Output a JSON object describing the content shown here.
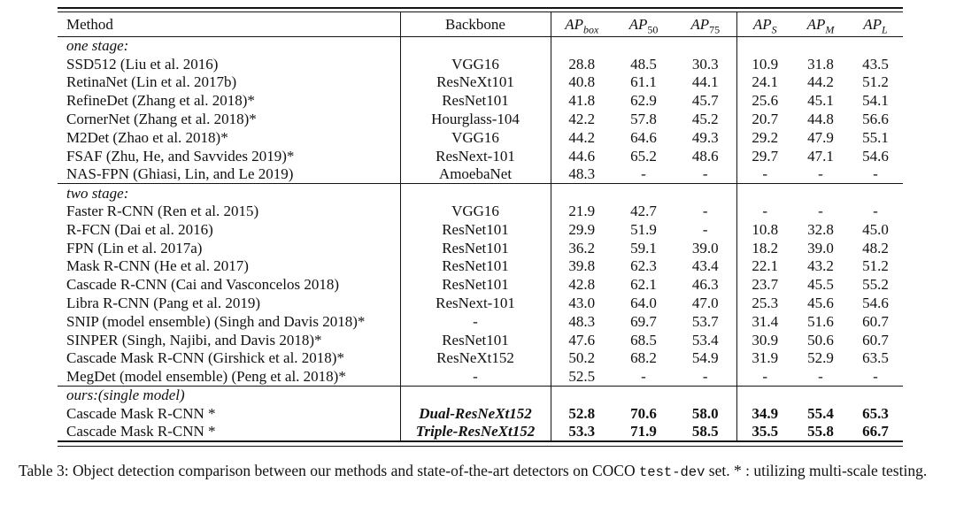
{
  "table": {
    "headers": [
      {
        "label": "Method"
      },
      {
        "label": "Backbone"
      },
      {
        "base": "AP",
        "sub": "box"
      },
      {
        "base": "AP",
        "sub": "50"
      },
      {
        "base": "AP",
        "sub": "75"
      },
      {
        "base": "AP",
        "sub": "S"
      },
      {
        "base": "AP",
        "sub": "M"
      },
      {
        "base": "AP",
        "sub": "L"
      }
    ],
    "sections": [
      {
        "label": "one stage:",
        "rows": [
          {
            "method": "SSD512 (Liu et al. 2016)",
            "backbone": "VGG16",
            "values": [
              "28.8",
              "48.5",
              "30.3",
              "10.9",
              "31.8",
              "43.5"
            ]
          },
          {
            "method": "RetinaNet (Lin et al. 2017b)",
            "backbone": "ResNeXt101",
            "values": [
              "40.8",
              "61.1",
              "44.1",
              "24.1",
              "44.2",
              "51.2"
            ]
          },
          {
            "method": "RefineDet (Zhang et al. 2018)*",
            "backbone": "ResNet101",
            "values": [
              "41.8",
              "62.9",
              "45.7",
              "25.6",
              "45.1",
              "54.1"
            ]
          },
          {
            "method": "CornerNet (Zhang et al. 2018)*",
            "backbone": "Hourglass-104",
            "values": [
              "42.2",
              "57.8",
              "45.2",
              "20.7",
              "44.8",
              "56.6"
            ]
          },
          {
            "method": "M2Det (Zhao et al. 2018)*",
            "backbone": "VGG16",
            "values": [
              "44.2",
              "64.6",
              "49.3",
              "29.2",
              "47.9",
              "55.1"
            ]
          },
          {
            "method": "FSAF (Zhu, He, and Savvides 2019)*",
            "backbone": "ResNext-101",
            "values": [
              "44.6",
              "65.2",
              "48.6",
              "29.7",
              "47.1",
              "54.6"
            ]
          },
          {
            "method": "NAS-FPN (Ghiasi, Lin, and Le 2019)",
            "backbone": "AmoebaNet",
            "values": [
              "48.3",
              "-",
              "-",
              "-",
              "-",
              "-"
            ]
          }
        ]
      },
      {
        "label": "two stage:",
        "rows": [
          {
            "method": "Faster R-CNN (Ren et al. 2015)",
            "backbone": "VGG16",
            "values": [
              "21.9",
              "42.7",
              "-",
              "-",
              "-",
              "-"
            ]
          },
          {
            "method": "R-FCN (Dai et al. 2016)",
            "backbone": "ResNet101",
            "values": [
              "29.9",
              "51.9",
              "-",
              "10.8",
              "32.8",
              "45.0"
            ]
          },
          {
            "method": "FPN (Lin et al. 2017a)",
            "backbone": "ResNet101",
            "values": [
              "36.2",
              "59.1",
              "39.0",
              "18.2",
              "39.0",
              "48.2"
            ]
          },
          {
            "method": "Mask R-CNN (He et al. 2017)",
            "backbone": "ResNet101",
            "values": [
              "39.8",
              "62.3",
              "43.4",
              "22.1",
              "43.2",
              "51.2"
            ]
          },
          {
            "method": "Cascade R-CNN (Cai and Vasconcelos 2018)",
            "backbone": "ResNet101",
            "values": [
              "42.8",
              "62.1",
              "46.3",
              "23.7",
              "45.5",
              "55.2"
            ]
          },
          {
            "method": "Libra R-CNN (Pang et al. 2019)",
            "backbone": "ResNext-101",
            "values": [
              "43.0",
              "64.0",
              "47.0",
              "25.3",
              "45.6",
              "54.6"
            ]
          },
          {
            "method": "SNIP (model ensemble) (Singh and Davis 2018)*",
            "backbone": "-",
            "values": [
              "48.3",
              "69.7",
              "53.7",
              "31.4",
              "51.6",
              "60.7"
            ]
          },
          {
            "method": "SINPER (Singh, Najibi, and Davis 2018)*",
            "backbone": "ResNet101",
            "values": [
              "47.6",
              "68.5",
              "53.4",
              "30.9",
              "50.6",
              "60.7"
            ]
          },
          {
            "method": "Cascade Mask R-CNN (Girshick et al. 2018)*",
            "backbone": "ResNeXt152",
            "values": [
              "50.2",
              "68.2",
              "54.9",
              "31.9",
              "52.9",
              "63.5"
            ]
          },
          {
            "method": "MegDet (model ensemble) (Peng et al. 2018)*",
            "backbone": "-",
            "values": [
              "52.5",
              "-",
              "-",
              "-",
              "-",
              "-"
            ]
          }
        ]
      },
      {
        "label": "ours:(single model)",
        "rows": [
          {
            "method": "Cascade Mask R-CNN *",
            "backbone": "Dual-ResNeXt152",
            "values": [
              "52.8",
              "70.6",
              "58.0",
              "34.9",
              "55.4",
              "65.3"
            ],
            "emphasis": true
          },
          {
            "method": "Cascade Mask R-CNN *",
            "backbone": "Triple-ResNeXt152",
            "values": [
              "53.3",
              "71.9",
              "58.5",
              "35.5",
              "55.8",
              "66.7"
            ],
            "emphasis": true
          }
        ]
      }
    ]
  },
  "caption": {
    "before_code": "Table 3: Object detection comparison between our methods and state-of-the-art detectors on COCO ",
    "code": "test-dev",
    "after_code": " set. * : utilizing multi-scale testing."
  },
  "colors": {
    "text": "#111111",
    "rule": "#141414",
    "background": "#ffffff"
  }
}
